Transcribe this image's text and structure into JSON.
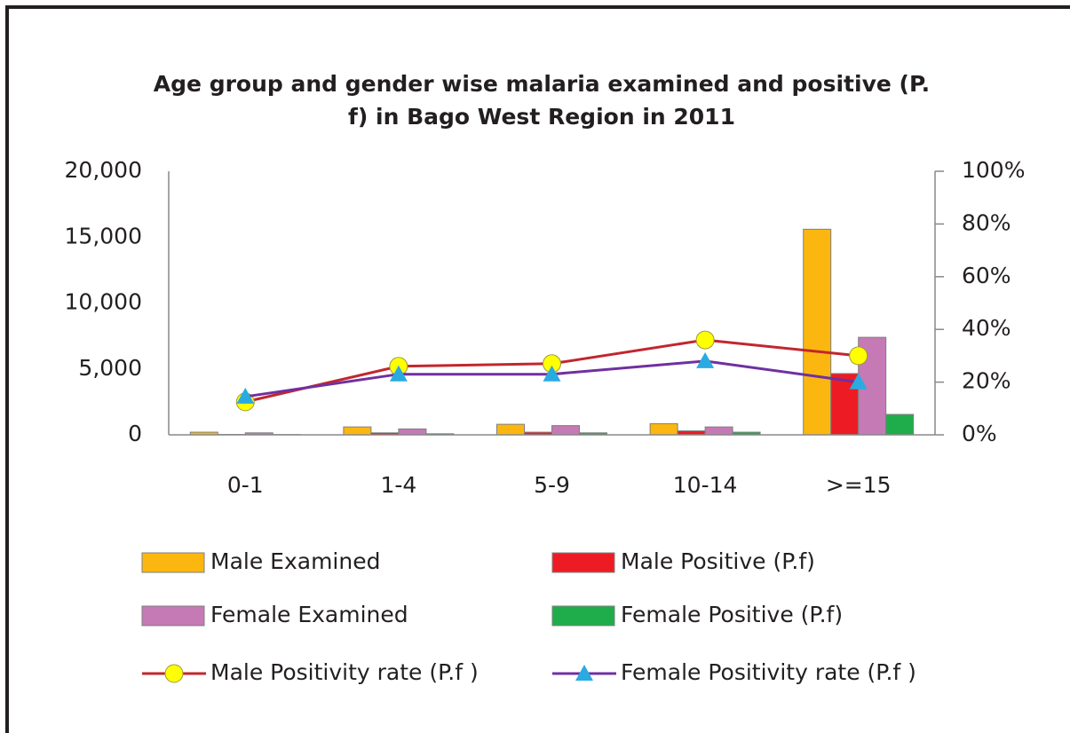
{
  "chart_data": {
    "type": "bar",
    "title": [
      "Age group and gender wise malaria examined and positive (P.",
      "f) in Bago West Region in 2011"
    ],
    "categories": [
      "0-1",
      "1-4",
      "5-9",
      "10-14",
      ">=15"
    ],
    "ylim": [
      0,
      20000
    ],
    "yticks": [
      0,
      {
        "value": 5000,
        "label": "5,000"
      },
      {
        "value": 10000,
        "label": "10,000"
      },
      {
        "value": 15000,
        "label": "15,000"
      },
      {
        "value": 20000,
        "label": "20,000"
      }
    ],
    "y2lim": [
      0,
      100
    ],
    "y2ticks": [
      {
        "value": 0,
        "label": "0%"
      },
      {
        "value": 20,
        "label": "20%"
      },
      {
        "value": 40,
        "label": "40%"
      },
      {
        "value": 60,
        "label": "60%"
      },
      {
        "value": 80,
        "label": "80%"
      },
      {
        "value": 100,
        "label": "100%"
      }
    ],
    "grid": false,
    "series": [
      {
        "name": "Male Examined",
        "color": "#fbb710",
        "values": [
          200,
          600,
          800,
          850,
          15600
        ]
      },
      {
        "name": "Male Positive (P.f)",
        "color": "#ed1c24",
        "values": [
          30,
          150,
          200,
          300,
          4650
        ]
      },
      {
        "name": "Female Examined",
        "color": "#c57ab5",
        "values": [
          150,
          450,
          700,
          600,
          7400
        ]
      },
      {
        "name": "Female Positive (P.f)",
        "color": "#1fad4b",
        "values": [
          20,
          80,
          150,
          200,
          1550
        ]
      },
      {
        "name": "Male Positivity rate (P.f )",
        "type": "line",
        "axis": "y2",
        "color": "#c1272d",
        "marker": "circle",
        "marker_color": "#ffff00",
        "values": [
          12.5,
          26,
          27,
          36,
          30
        ]
      },
      {
        "name": "Female Positivity rate (P.f )",
        "type": "line",
        "axis": "y2",
        "color": "#7030a0",
        "marker": "triangle",
        "marker_color": "#29abe2",
        "values": [
          14.5,
          23,
          23,
          28,
          20
        ]
      }
    ]
  }
}
